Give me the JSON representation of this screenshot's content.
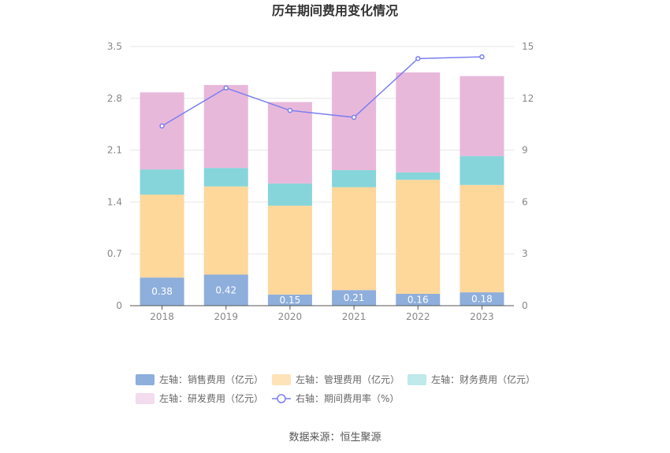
{
  "chart_data": {
    "type": "bar",
    "title": "历年期间费用变化情况",
    "categories": [
      "2018",
      "2019",
      "2020",
      "2021",
      "2022",
      "2023"
    ],
    "series": [
      {
        "name": "左轴：销售费用（亿元）",
        "type": "bar",
        "axis": "left",
        "color": "#8eaedc",
        "values": [
          0.38,
          0.42,
          0.15,
          0.21,
          0.16,
          0.18
        ],
        "labels": [
          "0.38",
          "0.42",
          "0.15",
          "0.21",
          "0.16",
          "0.18"
        ]
      },
      {
        "name": "左轴：管理费用（亿元）",
        "type": "bar",
        "axis": "left",
        "color": "#fed79b",
        "values": [
          1.12,
          1.19,
          1.2,
          1.39,
          1.54,
          1.45
        ]
      },
      {
        "name": "左轴：财务费用（亿元）",
        "type": "bar",
        "axis": "left",
        "color": "#86d5da",
        "values": [
          0.34,
          0.25,
          0.3,
          0.23,
          0.1,
          0.39
        ]
      },
      {
        "name": "左轴：研发费用（亿元）",
        "type": "bar",
        "axis": "left",
        "color": "#e8b8da",
        "values": [
          1.04,
          1.12,
          1.1,
          1.33,
          1.35,
          1.08
        ]
      },
      {
        "name": "右轴：期间费用率（%）",
        "type": "line",
        "axis": "right",
        "color": "#7b7ff0",
        "values": [
          10.4,
          12.6,
          11.3,
          10.9,
          14.3,
          14.4
        ]
      }
    ],
    "left_axis": {
      "min": 0,
      "max": 3.5,
      "ticks": [
        "0",
        "0.7",
        "1.4",
        "2.1",
        "2.8",
        "3.5"
      ]
    },
    "right_axis": {
      "min": 0,
      "max": 15,
      "ticks": [
        "0",
        "3",
        "6",
        "9",
        "12",
        "15"
      ]
    },
    "grid": true,
    "legend_position": "bottom"
  },
  "legend_colors": [
    "#8eaedc",
    "#fee3b8",
    "#bfe9ea",
    "#f3dcee"
  ],
  "source_text": "数据来源：恒生聚源"
}
